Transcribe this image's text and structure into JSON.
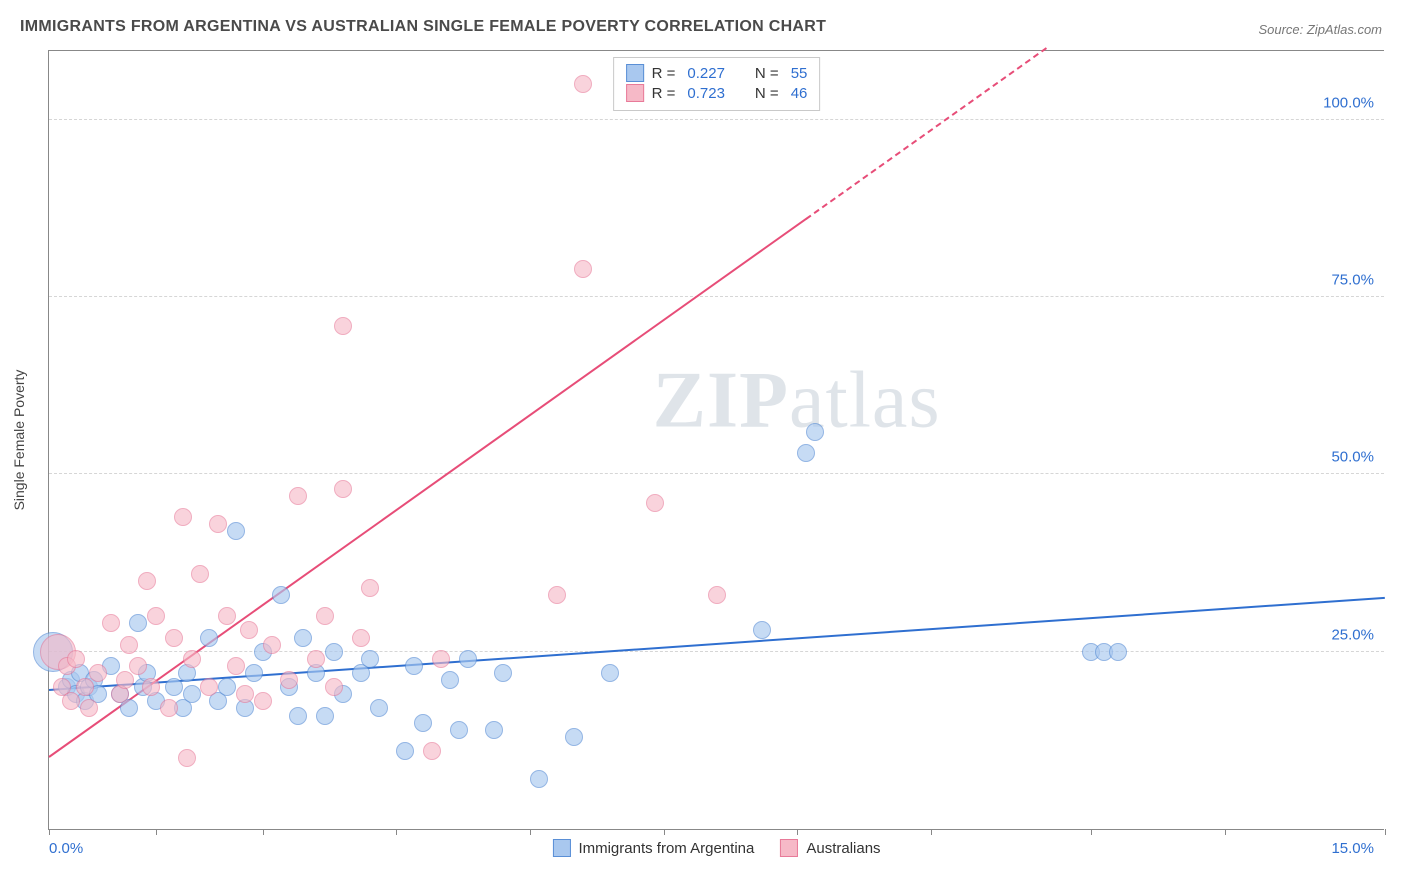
{
  "title": "IMMIGRANTS FROM ARGENTINA VS AUSTRALIAN SINGLE FEMALE POVERTY CORRELATION CHART",
  "source": "Source: ZipAtlas.com",
  "watermark_zip": "ZIP",
  "watermark_atlas": "atlas",
  "yaxis_title": "Single Female Poverty",
  "chart": {
    "type": "scatter",
    "background_color": "#ffffff",
    "grid_color": "#d6d6d6",
    "border_color": "#888888",
    "xlim": [
      0,
      15
    ],
    "ylim": [
      0,
      110
    ],
    "xlabel_min": "0.0%",
    "xlabel_max": "15.0%",
    "xtick_positions_pct": [
      0,
      8.0,
      16.0,
      26.0,
      36.0,
      46.0,
      56.0,
      66.0,
      78.0,
      88.0,
      100.0
    ],
    "ygrid": [
      {
        "value": 25,
        "label": "25.0%"
      },
      {
        "value": 50,
        "label": "50.0%"
      },
      {
        "value": 75,
        "label": "75.0%"
      },
      {
        "value": 100,
        "label": "100.0%"
      }
    ],
    "series": [
      {
        "id": "argentina",
        "label": "Immigrants from Argentina",
        "R": "0.227",
        "N": "55",
        "marker_fill": "#a9c8ef",
        "marker_stroke": "#5a8fd6",
        "marker_opacity": 0.65,
        "marker_radius": 9,
        "trend": {
          "color": "#2f6fd0",
          "x1": 0,
          "y1": 19.5,
          "x2": 15,
          "y2": 32.5,
          "dash_after_x": null
        },
        "points": [
          {
            "x": 0.05,
            "y": 25,
            "r": 20
          },
          {
            "x": 0.2,
            "y": 20
          },
          {
            "x": 0.25,
            "y": 21
          },
          {
            "x": 0.3,
            "y": 19
          },
          {
            "x": 0.35,
            "y": 22
          },
          {
            "x": 0.4,
            "y": 18
          },
          {
            "x": 0.45,
            "y": 20
          },
          {
            "x": 0.5,
            "y": 21
          },
          {
            "x": 0.55,
            "y": 19
          },
          {
            "x": 0.7,
            "y": 23
          },
          {
            "x": 0.8,
            "y": 19
          },
          {
            "x": 0.9,
            "y": 17
          },
          {
            "x": 1.0,
            "y": 29
          },
          {
            "x": 1.05,
            "y": 20
          },
          {
            "x": 1.1,
            "y": 22
          },
          {
            "x": 1.2,
            "y": 18
          },
          {
            "x": 1.4,
            "y": 20
          },
          {
            "x": 1.5,
            "y": 17
          },
          {
            "x": 1.55,
            "y": 22
          },
          {
            "x": 1.6,
            "y": 19
          },
          {
            "x": 1.8,
            "y": 27
          },
          {
            "x": 1.9,
            "y": 18
          },
          {
            "x": 2.0,
            "y": 20
          },
          {
            "x": 2.1,
            "y": 42
          },
          {
            "x": 2.2,
            "y": 17
          },
          {
            "x": 2.3,
            "y": 22
          },
          {
            "x": 2.4,
            "y": 25
          },
          {
            "x": 2.6,
            "y": 33
          },
          {
            "x": 2.7,
            "y": 20
          },
          {
            "x": 2.8,
            "y": 16
          },
          {
            "x": 2.85,
            "y": 27
          },
          {
            "x": 3.0,
            "y": 22
          },
          {
            "x": 3.1,
            "y": 16
          },
          {
            "x": 3.2,
            "y": 25
          },
          {
            "x": 3.3,
            "y": 19
          },
          {
            "x": 3.5,
            "y": 22
          },
          {
            "x": 3.6,
            "y": 24
          },
          {
            "x": 3.7,
            "y": 17
          },
          {
            "x": 4.0,
            "y": 11
          },
          {
            "x": 4.1,
            "y": 23
          },
          {
            "x": 4.2,
            "y": 15
          },
          {
            "x": 4.5,
            "y": 21
          },
          {
            "x": 4.6,
            "y": 14
          },
          {
            "x": 4.7,
            "y": 24
          },
          {
            "x": 5.0,
            "y": 14
          },
          {
            "x": 5.1,
            "y": 22
          },
          {
            "x": 5.5,
            "y": 7
          },
          {
            "x": 5.9,
            "y": 13
          },
          {
            "x": 6.3,
            "y": 22
          },
          {
            "x": 8.0,
            "y": 28
          },
          {
            "x": 8.5,
            "y": 53
          },
          {
            "x": 8.6,
            "y": 56
          },
          {
            "x": 11.7,
            "y": 25
          },
          {
            "x": 11.85,
            "y": 25
          },
          {
            "x": 12.0,
            "y": 25
          }
        ]
      },
      {
        "id": "australians",
        "label": "Australians",
        "R": "0.723",
        "N": "46",
        "marker_fill": "#f6b9c7",
        "marker_stroke": "#e87a99",
        "marker_opacity": 0.62,
        "marker_radius": 9,
        "trend": {
          "color": "#e74d78",
          "x1": 0,
          "y1": 10,
          "x2": 11.2,
          "y2": 110,
          "dash_after_x": 8.5
        },
        "points": [
          {
            "x": 0.1,
            "y": 25,
            "r": 18
          },
          {
            "x": 0.15,
            "y": 20
          },
          {
            "x": 0.2,
            "y": 23
          },
          {
            "x": 0.25,
            "y": 18
          },
          {
            "x": 0.3,
            "y": 24
          },
          {
            "x": 0.4,
            "y": 20
          },
          {
            "x": 0.45,
            "y": 17
          },
          {
            "x": 0.55,
            "y": 22
          },
          {
            "x": 0.7,
            "y": 29
          },
          {
            "x": 0.8,
            "y": 19
          },
          {
            "x": 0.85,
            "y": 21
          },
          {
            "x": 0.9,
            "y": 26
          },
          {
            "x": 1.0,
            "y": 23
          },
          {
            "x": 1.1,
            "y": 35
          },
          {
            "x": 1.15,
            "y": 20
          },
          {
            "x": 1.2,
            "y": 30
          },
          {
            "x": 1.35,
            "y": 17
          },
          {
            "x": 1.4,
            "y": 27
          },
          {
            "x": 1.5,
            "y": 44
          },
          {
            "x": 1.55,
            "y": 10
          },
          {
            "x": 1.6,
            "y": 24
          },
          {
            "x": 1.7,
            "y": 36
          },
          {
            "x": 1.8,
            "y": 20
          },
          {
            "x": 1.9,
            "y": 43
          },
          {
            "x": 2.0,
            "y": 30
          },
          {
            "x": 2.1,
            "y": 23
          },
          {
            "x": 2.2,
            "y": 19
          },
          {
            "x": 2.25,
            "y": 28
          },
          {
            "x": 2.4,
            "y": 18
          },
          {
            "x": 2.5,
            "y": 26
          },
          {
            "x": 2.7,
            "y": 21
          },
          {
            "x": 2.8,
            "y": 47
          },
          {
            "x": 3.0,
            "y": 24
          },
          {
            "x": 3.1,
            "y": 30
          },
          {
            "x": 3.2,
            "y": 20
          },
          {
            "x": 3.3,
            "y": 48
          },
          {
            "x": 3.3,
            "y": 71
          },
          {
            "x": 3.5,
            "y": 27
          },
          {
            "x": 3.6,
            "y": 34
          },
          {
            "x": 4.3,
            "y": 11
          },
          {
            "x": 4.4,
            "y": 24
          },
          {
            "x": 5.7,
            "y": 33
          },
          {
            "x": 6.0,
            "y": 79
          },
          {
            "x": 6.0,
            "y": 105
          },
          {
            "x": 6.8,
            "y": 46
          },
          {
            "x": 7.5,
            "y": 33
          }
        ]
      }
    ]
  }
}
